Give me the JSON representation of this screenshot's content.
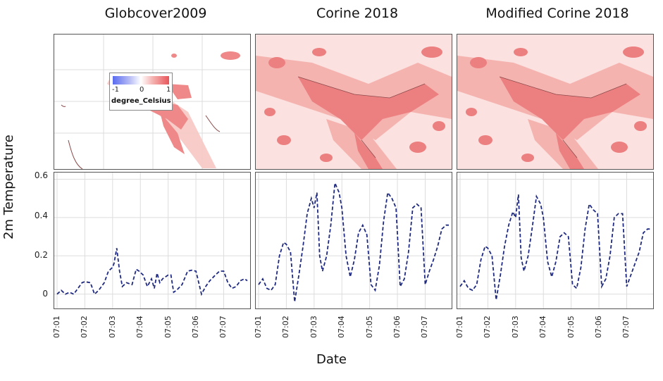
{
  "titles": [
    "Globcover2009",
    "Corine 2018",
    "Modified Corine 2018"
  ],
  "legend": {
    "ticks": [
      "-1",
      "0",
      "1"
    ],
    "title": "degree_Celsius",
    "colors": [
      "#5a6cf0",
      "#ffffff",
      "#e8555a"
    ]
  },
  "ylabel": "2m Temperature",
  "xlabel": "Date",
  "ytick_labels": [
    "0.6",
    "0.4",
    "0.2",
    "0"
  ],
  "xtick_labels": [
    "07:01",
    "07:02",
    "07:03",
    "07:04",
    "07:05",
    "07:06",
    "07:07"
  ],
  "chart_data": [
    {
      "type": "line",
      "title": "Globcover2009",
      "ylim": [
        -0.06,
        0.62
      ],
      "xlim": [
        0,
        6.85
      ],
      "line_color": "#1f2a80",
      "x": [
        0,
        0.15,
        0.3,
        0.45,
        0.6,
        0.75,
        0.9,
        1.0,
        1.2,
        1.35,
        1.5,
        1.7,
        1.85,
        2.0,
        2.05,
        2.15,
        2.25,
        2.35,
        2.5,
        2.7,
        2.85,
        2.95,
        3.1,
        3.25,
        3.4,
        3.5,
        3.6,
        3.7,
        3.8,
        3.9,
        4.0,
        4.1,
        4.2,
        4.3,
        4.5,
        4.7,
        4.85,
        5.0,
        5.2,
        5.35,
        5.5,
        5.7,
        5.85,
        6.0,
        6.15,
        6.3,
        6.45,
        6.6,
        6.75,
        6.85
      ],
      "y": [
        0.0,
        0.02,
        0.0,
        0.01,
        0.0,
        0.03,
        0.06,
        0.065,
        0.06,
        0.0,
        0.02,
        0.06,
        0.12,
        0.14,
        0.16,
        0.24,
        0.12,
        0.04,
        0.06,
        0.05,
        0.13,
        0.12,
        0.1,
        0.04,
        0.08,
        0.03,
        0.11,
        0.06,
        0.08,
        0.09,
        0.1,
        0.1,
        0.01,
        0.02,
        0.05,
        0.12,
        0.125,
        0.12,
        0.0,
        0.04,
        0.07,
        0.1,
        0.12,
        0.12,
        0.06,
        0.03,
        0.04,
        0.07,
        0.08,
        0.07
      ]
    },
    {
      "type": "line",
      "title": "Corine 2018",
      "ylim": [
        -0.06,
        0.62
      ],
      "xlim": [
        0,
        6.85
      ],
      "line_color": "#1f2a80",
      "x": [
        0,
        0.15,
        0.3,
        0.45,
        0.6,
        0.75,
        0.9,
        1.0,
        1.15,
        1.3,
        1.45,
        1.6,
        1.75,
        1.9,
        2.0,
        2.1,
        2.2,
        2.3,
        2.45,
        2.6,
        2.75,
        2.9,
        3.0,
        3.15,
        3.3,
        3.45,
        3.6,
        3.75,
        3.9,
        4.05,
        4.2,
        4.35,
        4.5,
        4.65,
        4.8,
        4.95,
        5.1,
        5.25,
        5.4,
        5.55,
        5.7,
        5.85,
        6.0,
        6.15,
        6.3,
        6.45,
        6.6,
        6.75,
        6.85
      ],
      "y": [
        0.05,
        0.08,
        0.03,
        0.02,
        0.05,
        0.2,
        0.27,
        0.26,
        0.22,
        -0.04,
        0.1,
        0.25,
        0.42,
        0.5,
        0.45,
        0.53,
        0.2,
        0.12,
        0.2,
        0.36,
        0.58,
        0.53,
        0.45,
        0.2,
        0.09,
        0.18,
        0.32,
        0.36,
        0.31,
        0.05,
        0.02,
        0.15,
        0.38,
        0.53,
        0.5,
        0.45,
        0.04,
        0.08,
        0.22,
        0.45,
        0.47,
        0.45,
        0.05,
        0.12,
        0.18,
        0.25,
        0.34,
        0.36,
        0.36
      ]
    },
    {
      "type": "line",
      "title": "Modified Corine 2018",
      "ylim": [
        -0.06,
        0.62
      ],
      "xlim": [
        0,
        6.85
      ],
      "line_color": "#1f2a80",
      "x": [
        0,
        0.15,
        0.3,
        0.45,
        0.6,
        0.75,
        0.9,
        1.0,
        1.15,
        1.3,
        1.45,
        1.6,
        1.75,
        1.9,
        2.0,
        2.1,
        2.2,
        2.3,
        2.45,
        2.6,
        2.75,
        2.9,
        3.0,
        3.15,
        3.3,
        3.45,
        3.6,
        3.75,
        3.9,
        4.05,
        4.2,
        4.35,
        4.5,
        4.65,
        4.8,
        4.95,
        5.1,
        5.25,
        5.4,
        5.55,
        5.7,
        5.85,
        6.0,
        6.15,
        6.3,
        6.45,
        6.6,
        6.75,
        6.85
      ],
      "y": [
        0.04,
        0.07,
        0.03,
        0.02,
        0.05,
        0.18,
        0.25,
        0.24,
        0.2,
        -0.03,
        0.1,
        0.25,
        0.36,
        0.43,
        0.4,
        0.52,
        0.19,
        0.12,
        0.2,
        0.35,
        0.51,
        0.47,
        0.4,
        0.17,
        0.09,
        0.17,
        0.3,
        0.32,
        0.3,
        0.05,
        0.03,
        0.14,
        0.34,
        0.47,
        0.44,
        0.42,
        0.04,
        0.08,
        0.2,
        0.4,
        0.42,
        0.42,
        0.04,
        0.1,
        0.16,
        0.22,
        0.32,
        0.34,
        0.34
      ]
    }
  ]
}
